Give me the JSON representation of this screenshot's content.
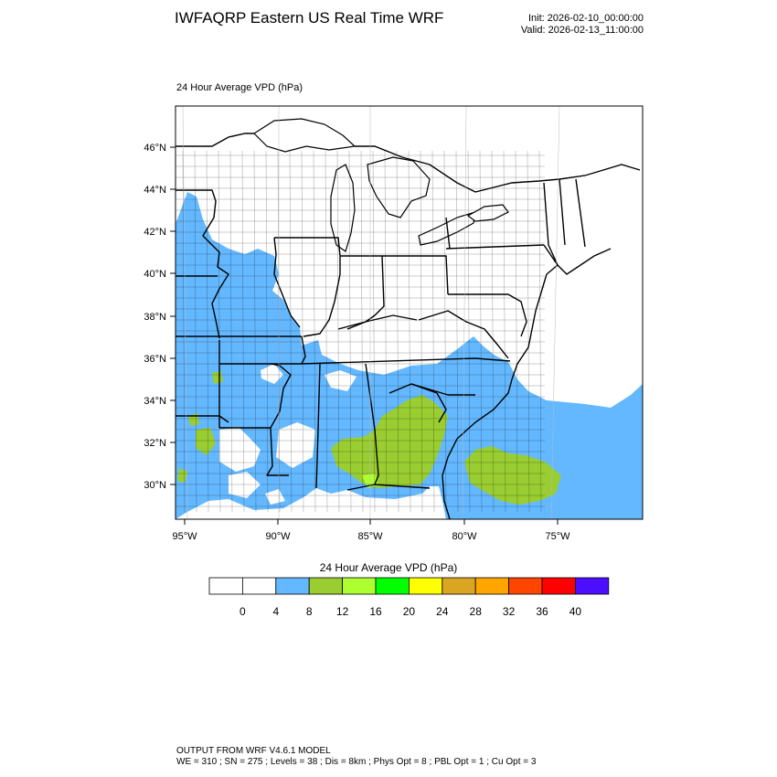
{
  "header": {
    "title": "IWFAQRP Eastern US Real Time WRF",
    "init": "Init: 2026-02-10_00:00:00",
    "valid": "Valid: 2026-02-13_11:00:00"
  },
  "map": {
    "field_label": "24 Hour Average VPD   (hPa)",
    "lat_labels": [
      "46°N",
      "44°N",
      "42°N",
      "40°N",
      "38°N",
      "36°N",
      "34°N",
      "32°N",
      "30°N"
    ],
    "lon_labels": [
      "95°W",
      "90°W",
      "85°W",
      "80°W",
      "75°W"
    ],
    "colors": {
      "blue": "#63b8ff",
      "olive": "#9acd32",
      "green": "#adff2f",
      "border": "#000000"
    }
  },
  "colorbar": {
    "title": "24 Hour Average VPD  (hPa)",
    "colors": [
      "#ffffff",
      "#ffffff",
      "#63b8ff",
      "#9acd32",
      "#adff2f",
      "#00ff00",
      "#ffff00",
      "#daa520",
      "#ffa500",
      "#ff4500",
      "#ff0000",
      "#4b0eff"
    ],
    "labels": [
      "0",
      "4",
      "8",
      "12",
      "16",
      "20",
      "24",
      "28",
      "32",
      "36",
      "40"
    ]
  },
  "footer": {
    "line1": "OUTPUT FROM WRF V4.6.1 MODEL",
    "line2": "WE = 310 ; SN = 275 ; Levels = 38 ; Dis = 8km ; Phys Opt = 8 ; PBL Opt = 1 ; Cu Opt = 3"
  }
}
